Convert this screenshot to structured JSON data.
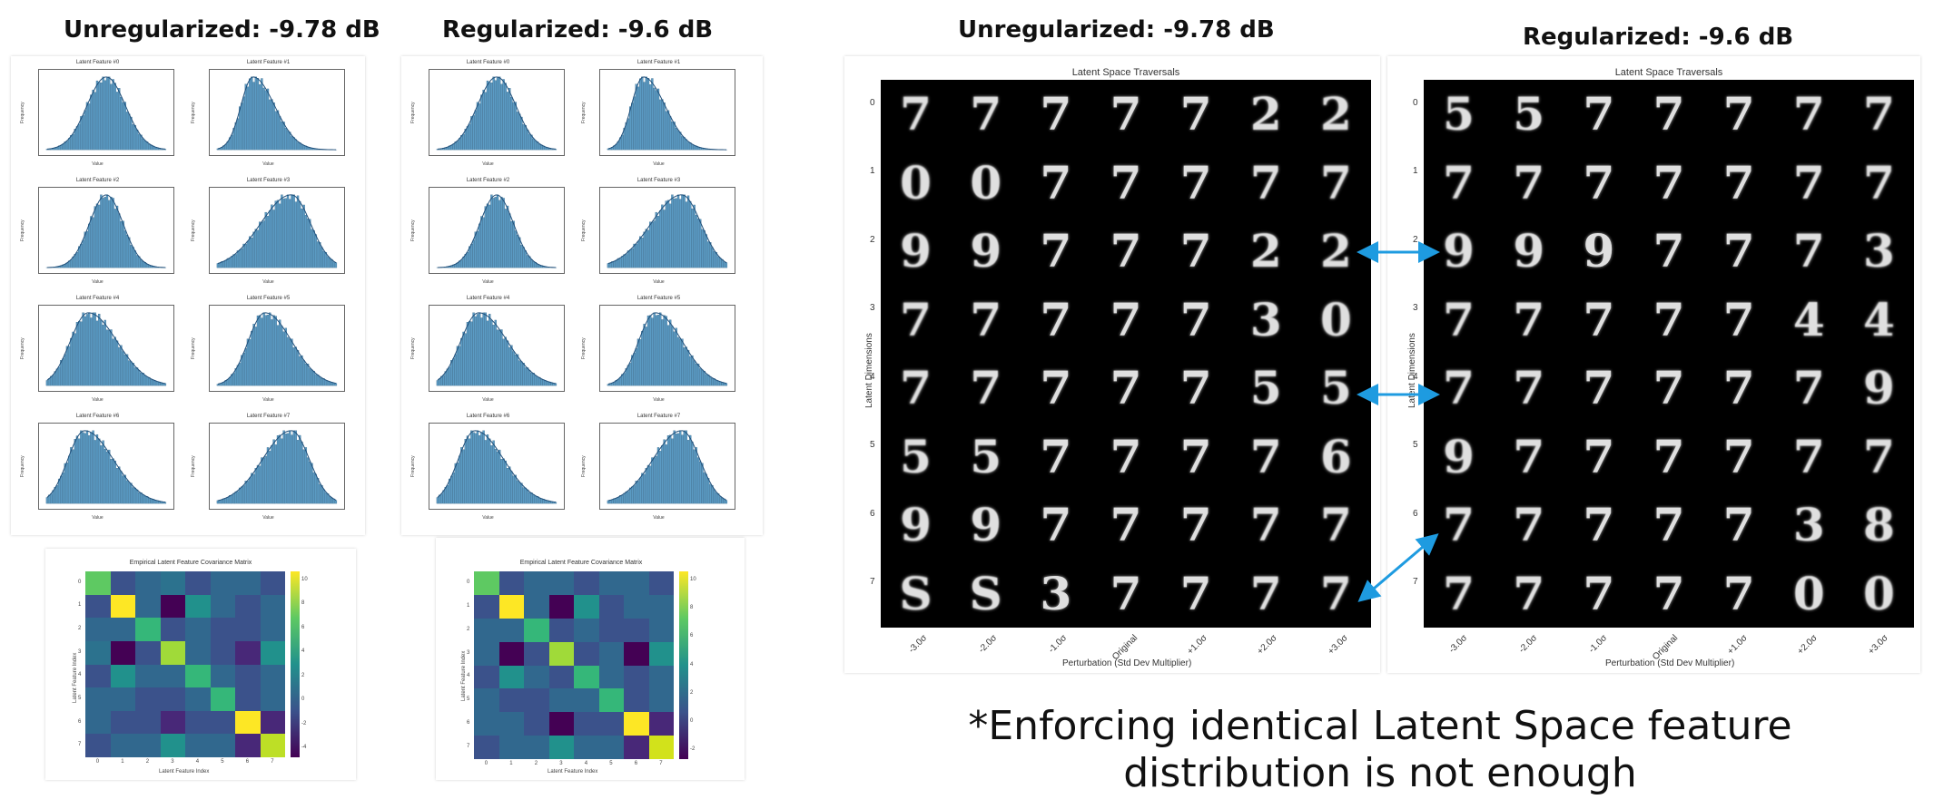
{
  "headings": {
    "left_unreg": "Unregularized: -9.78 dB",
    "left_reg": "Regularized: -9.6 dB",
    "right_unreg": "Unregularized: -9.78 dB",
    "right_reg": "Regularized: -9.6 dB"
  },
  "histograms": {
    "titles": [
      "Latent Feature #0",
      "Latent Feature #1",
      "Latent Feature #2",
      "Latent Feature #3",
      "Latent Feature #4",
      "Latent Feature #5",
      "Latent Feature #6",
      "Latent Feature #7"
    ],
    "ylabel": "Frequency",
    "xlabel": "Value"
  },
  "covariance": {
    "title": "Empirical Latent Feature Covariance Matrix",
    "xlabel": "Latent Feature Index",
    "ylabel": "Latent Feature Index",
    "ticks": [
      "0",
      "1",
      "2",
      "3",
      "4",
      "5",
      "6",
      "7"
    ],
    "unreg_colorbar": [
      "10",
      "8",
      "6",
      "4",
      "2",
      "0",
      "-2",
      "-4"
    ],
    "reg_colorbar": [
      "10",
      "8",
      "6",
      "4",
      "2",
      "0",
      "-2"
    ],
    "unreg_colors": [
      [
        "#5ec962",
        "#3b528b",
        "#31688e",
        "#2c728e",
        "#3b528b",
        "#31688e",
        "#31688e",
        "#3b528b"
      ],
      [
        "#3b528b",
        "#fde725",
        "#31688e",
        "#440154",
        "#21918c",
        "#31688e",
        "#3b528b",
        "#31688e"
      ],
      [
        "#31688e",
        "#31688e",
        "#35b779",
        "#3b528b",
        "#31688e",
        "#3b528b",
        "#3b528b",
        "#31688e"
      ],
      [
        "#2c728e",
        "#440154",
        "#3b528b",
        "#a0da39",
        "#31688e",
        "#3b528b",
        "#482878",
        "#21918c"
      ],
      [
        "#3b528b",
        "#21918c",
        "#31688e",
        "#31688e",
        "#35b779",
        "#31688e",
        "#3b528b",
        "#31688e"
      ],
      [
        "#31688e",
        "#31688e",
        "#3b528b",
        "#3b528b",
        "#31688e",
        "#35b779",
        "#3b528b",
        "#31688e"
      ],
      [
        "#31688e",
        "#3b528b",
        "#3b528b",
        "#482878",
        "#3b528b",
        "#3b528b",
        "#fde725",
        "#482878"
      ],
      [
        "#3b528b",
        "#31688e",
        "#31688e",
        "#21918c",
        "#31688e",
        "#31688e",
        "#482878",
        "#bddf26"
      ]
    ],
    "reg_colors": [
      [
        "#5ec962",
        "#3b528b",
        "#31688e",
        "#31688e",
        "#3b528b",
        "#31688e",
        "#31688e",
        "#3b528b"
      ],
      [
        "#3b528b",
        "#fde725",
        "#31688e",
        "#440154",
        "#21918c",
        "#3b528b",
        "#31688e",
        "#31688e"
      ],
      [
        "#31688e",
        "#31688e",
        "#35b779",
        "#3b528b",
        "#31688e",
        "#3b528b",
        "#3b528b",
        "#31688e"
      ],
      [
        "#31688e",
        "#440154",
        "#3b528b",
        "#a0da39",
        "#3b528b",
        "#31688e",
        "#440154",
        "#21918c"
      ],
      [
        "#3b528b",
        "#21918c",
        "#31688e",
        "#3b528b",
        "#35b779",
        "#31688e",
        "#3b528b",
        "#31688e"
      ],
      [
        "#31688e",
        "#3b528b",
        "#3b528b",
        "#31688e",
        "#31688e",
        "#35b779",
        "#3b528b",
        "#31688e"
      ],
      [
        "#31688e",
        "#31688e",
        "#3b528b",
        "#440154",
        "#3b528b",
        "#3b528b",
        "#fde725",
        "#482878"
      ],
      [
        "#3b528b",
        "#31688e",
        "#31688e",
        "#21918c",
        "#31688e",
        "#31688e",
        "#482878",
        "#d2e21b"
      ]
    ]
  },
  "traversals": {
    "title": "Latent Space Traversals",
    "ylabel": "Latent Dimensions",
    "xlabel": "Perturbation (Std Dev Multiplier)",
    "columns": [
      "-3.0σ",
      "-2.0σ",
      "-1.0σ",
      "Original",
      "+1.0σ",
      "+2.0σ",
      "+3.0σ"
    ],
    "rows": [
      "0",
      "1",
      "2",
      "3",
      "4",
      "5",
      "6",
      "7"
    ],
    "unreg_digits": [
      [
        "7",
        "7",
        "7",
        "7",
        "7",
        "2",
        "2"
      ],
      [
        "0",
        "0",
        "7",
        "7",
        "7",
        "7",
        "7"
      ],
      [
        "9",
        "9",
        "7",
        "7",
        "7",
        "2",
        "2"
      ],
      [
        "7",
        "7",
        "7",
        "7",
        "7",
        "3",
        "0"
      ],
      [
        "7",
        "7",
        "7",
        "7",
        "7",
        "5",
        "5"
      ],
      [
        "5",
        "5",
        "7",
        "7",
        "7",
        "7",
        "6"
      ],
      [
        "9",
        "9",
        "7",
        "7",
        "7",
        "7",
        "7"
      ],
      [
        "S",
        "S",
        "3",
        "7",
        "7",
        "7",
        "7"
      ]
    ],
    "reg_digits": [
      [
        "5",
        "5",
        "7",
        "7",
        "7",
        "7",
        "7"
      ],
      [
        "7",
        "7",
        "7",
        "7",
        "7",
        "7",
        "7"
      ],
      [
        "9",
        "9",
        "9",
        "7",
        "7",
        "7",
        "3"
      ],
      [
        "7",
        "7",
        "7",
        "7",
        "7",
        "4",
        "4"
      ],
      [
        "7",
        "7",
        "7",
        "7",
        "7",
        "7",
        "9"
      ],
      [
        "9",
        "7",
        "7",
        "7",
        "7",
        "7",
        "7"
      ],
      [
        "7",
        "7",
        "7",
        "7",
        "7",
        "3",
        "8"
      ],
      [
        "7",
        "7",
        "7",
        "7",
        "7",
        "0",
        "0"
      ]
    ]
  },
  "caption": {
    "line1": "*Enforcing identical Latent Space feature",
    "line2": "distribution is not enough"
  }
}
